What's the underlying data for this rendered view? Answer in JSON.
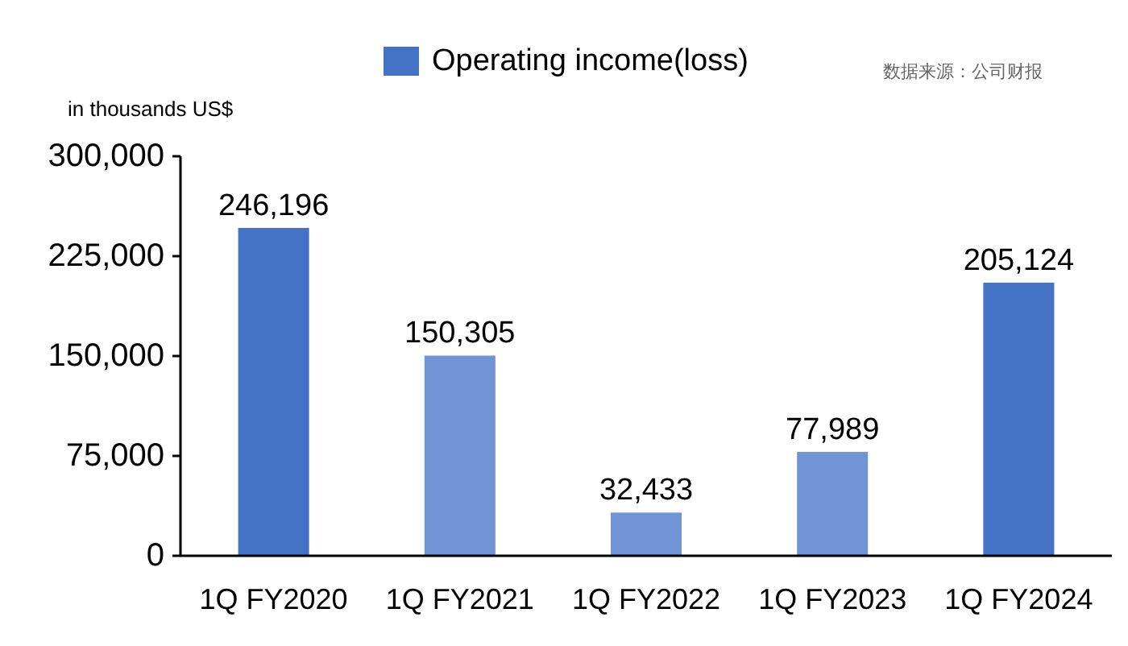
{
  "chart_data": {
    "type": "bar",
    "ylabel": "in thousands US$",
    "annotations": [
      "数据来源：公司财报"
    ],
    "categories": [
      "1Q FY2020",
      "1Q FY2021",
      "1Q FY2022",
      "1Q FY2023",
      "1Q FY2024"
    ],
    "series": [
      {
        "name": "Operating income(loss)",
        "values": [
          246196,
          150305,
          32433,
          77989,
          205124
        ],
        "value_labels": [
          "246,196",
          "150,305",
          "32,433",
          "77,989",
          "205,124"
        ]
      }
    ],
    "colors": [
      "#4472c4",
      "#7094d6",
      "#7094d6",
      "#7094d6",
      "#4472c4"
    ],
    "ylim": [
      0,
      300000
    ],
    "yticks": [
      {
        "value": 0,
        "label": "0"
      },
      {
        "value": 75000,
        "label": "75,000"
      },
      {
        "value": 150000,
        "label": "150,000"
      },
      {
        "value": 225000,
        "label": "225,000"
      },
      {
        "value": 300000,
        "label": "300,000"
      }
    ],
    "legend": "top",
    "grid": false
  }
}
